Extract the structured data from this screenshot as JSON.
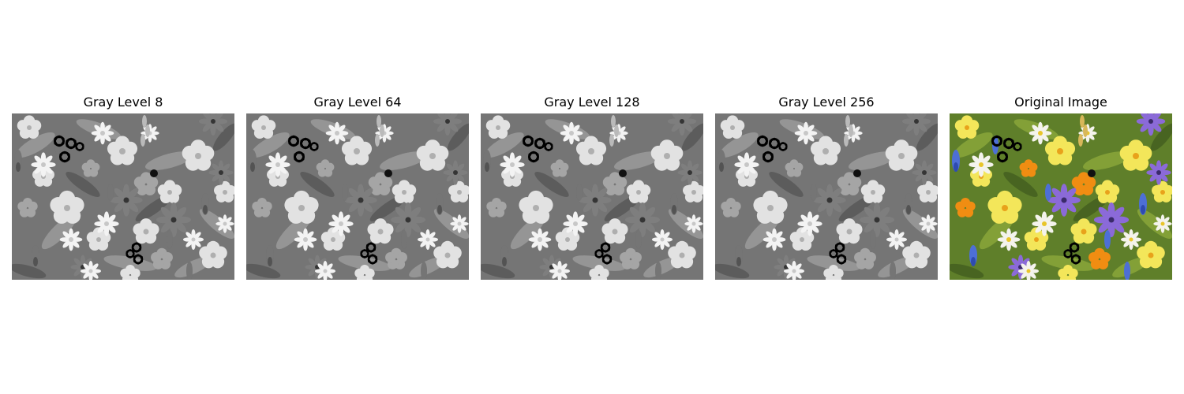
{
  "figure": {
    "panels": [
      {
        "title": "Gray Level 8",
        "mode": "gray"
      },
      {
        "title": "Gray Level 64",
        "mode": "gray"
      },
      {
        "title": "Gray Level 128",
        "mode": "gray"
      },
      {
        "title": "Gray Level 256",
        "mode": "gray"
      },
      {
        "title": "Original Image",
        "mode": "color"
      }
    ]
  }
}
